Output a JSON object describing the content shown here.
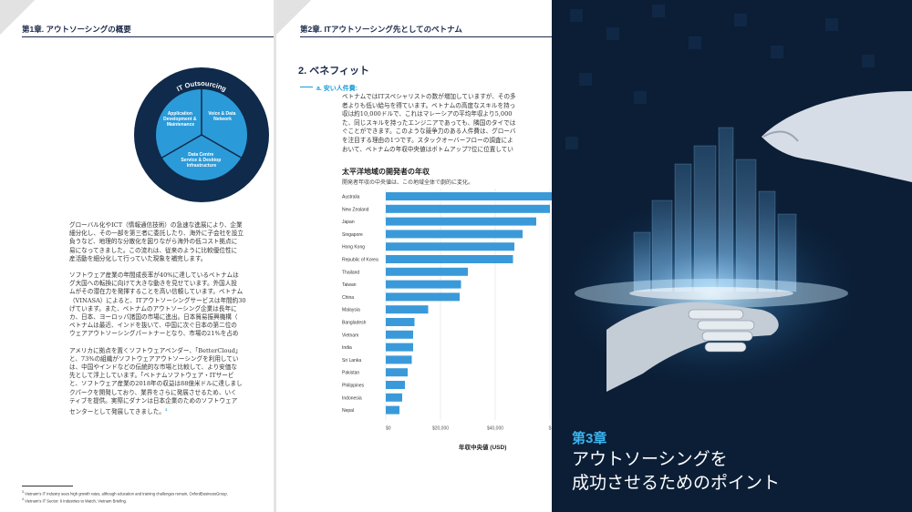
{
  "page1": {
    "chapter_heading": "第1章. アウトソーシングの概要",
    "diagram": {
      "title": "IT Outsourcing",
      "segments": [
        {
          "label": "Application Development & Maintenance"
        },
        {
          "label": "Voice & Data Network"
        },
        {
          "label": "Data Centre Service & Desktop Infrastructure"
        }
      ]
    },
    "paragraphs": [
      [
        "グローバル化やICT（情報通信技術）の急速な進展により、企業",
        "細分化し、その一部を第三者に委託したり、海外に子会社を設立",
        "負うなど、地理的な分散化を図りながら海外の低コスト拠点に",
        "易になってきました。この流れは、従来のように比較優位性に",
        "産活動を細分化して行っていた現象を補完します。"
      ],
      [
        "ソフトウェア産業の年間成長率が40%に達しているベトナムは",
        "グ大国への転換に向けて大きな動きを見せています。外国人投",
        "ムがその潜在力を発揮することを高い信頼しています。ベトナム",
        "（VINASA）によると、ITアウトソーシングサービスは年間約30",
        "げています。また、ベトナムのアウトソーシング企業は長年に",
        "カ、日本、ヨーロッパ諸国の市場に進出。日本貿易振興機構（",
        "ベトナムは最近、インドを抜いて、中国に次ぐ日本の第二位の",
        "ウェアアウトソーシングパートナーとなり、市場の21%を占め"
      ],
      [
        "アメリカに拠点を置くソフトウェアベンダー、「BetterCloud」",
        "と、73%の組織がソフトウェアアウトソーシングを利用してい",
        "は、中国やインドなどの伝統的な市場と比較して、より安価な",
        "先として浮上しています。「ベトナムソフトウェア・ITサービ",
        "と、ソフトウェア産業の2018年の収益は88億米ドルに達しまし",
        "クパークを開発しており、業界をさらに発展させるため、いく",
        "ティブを提供。実際にダナンは日本企業のためのソフトウェア",
        "センターとして発展してきました。"
      ]
    ],
    "footnotes": [
      "Vietnam's IT industry sees high growth rates, although education and training challenges remain, OxfordBusinessGroup.",
      "Vietnam's IT Sector: 6 Industries to Watch, Vietnam Briefing."
    ],
    "footnote_marks": [
      "3",
      "4"
    ]
  },
  "page2": {
    "chapter_heading": "第2章. ITアウトソーシング先としてのベトナム",
    "section_title": "2. ベネフィット",
    "subsection": "a. 安い人件費:",
    "paragraph": [
      "ベトナムではITスペシャリストの数が増加していますが、その多",
      "者よりも低い給与を得ています。ベトナムの高度なスキルを持っ",
      "収は約10,000ドルで、これはマレーシアの平均年収より5,000",
      "た、同じスキルを持ったエンジニアであっても、隣国のタイでは",
      "ぐことができます。このような競争力のある人件費は、グローバ",
      "を注目する理由の1つです。スタックオーバーフローの調査によ",
      "おいて、ベトナムの年収中央値はボトムアップ7位に位置してい"
    ]
  },
  "chart_data": {
    "type": "bar",
    "orientation": "horizontal",
    "title": "太平洋地域の開発者の年収",
    "subtitle": "開発者年収の中央値は、この地域全体で劇的に変化。",
    "xlabel": "年収中央値 (USD)",
    "ylabel": "",
    "categories": [
      "Australia",
      "New Zealand",
      "Japan",
      "Singapore",
      "Hong Kong",
      "Republic of Korea",
      "Thailand",
      "Taiwan",
      "China",
      "Malaysia",
      "Bangladesh",
      "Vietnam",
      "India",
      "Sri Lanka",
      "Pakistan",
      "Philippines",
      "Indonesia",
      "Nepal"
    ],
    "values": [
      62000,
      60000,
      55000,
      50000,
      47000,
      46500,
      30000,
      27500,
      27000,
      15500,
      10500,
      10000,
      10000,
      9500,
      8000,
      7000,
      6000,
      5000
    ],
    "xticks": [
      "$0",
      "$20,000",
      "$40,000",
      "$"
    ],
    "xlim": [
      0,
      60000
    ],
    "bar_color": "#3a9ad9",
    "grid": true
  },
  "page3": {
    "chapter_number": "第3章",
    "title_lines": [
      "アウトソーシングを",
      "成功させるためのポイント"
    ]
  }
}
